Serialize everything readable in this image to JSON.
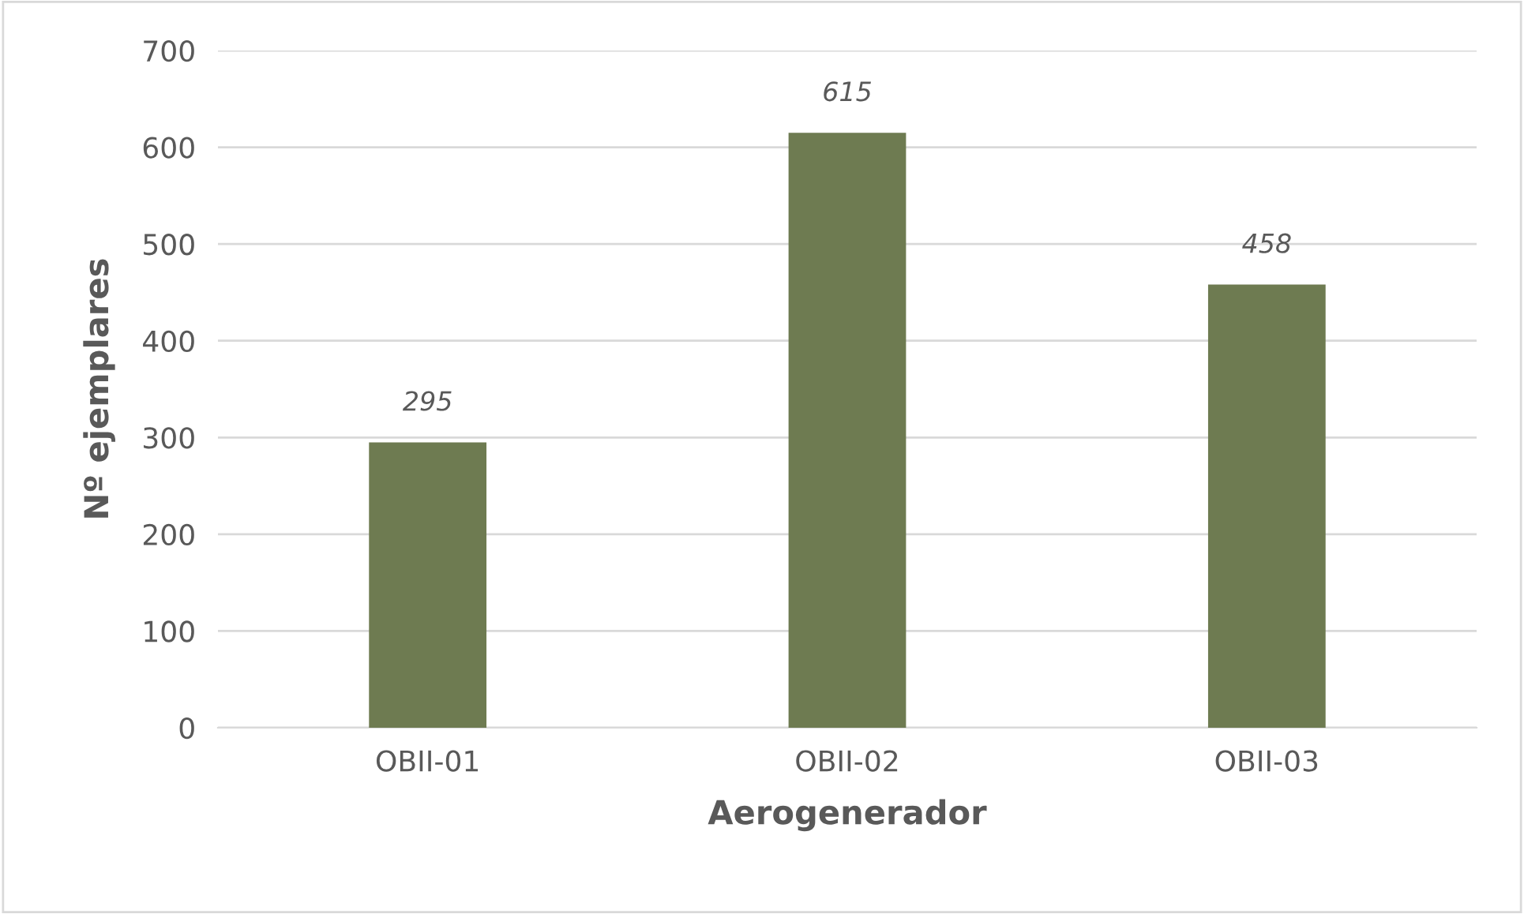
{
  "chart_data": {
    "type": "bar",
    "xlabel": "Aerogenerador",
    "ylabel": "Nº ejemplares",
    "categories": [
      "OBII-01",
      "OBII-02",
      "OBII-03"
    ],
    "values": [
      295,
      615,
      458
    ],
    "color": "#6e7b51",
    "ylim": [
      0,
      700
    ],
    "yticks": [
      0,
      100,
      200,
      300,
      400,
      500,
      600,
      700
    ],
    "grid": "y",
    "data_labels": true,
    "legend": false
  }
}
